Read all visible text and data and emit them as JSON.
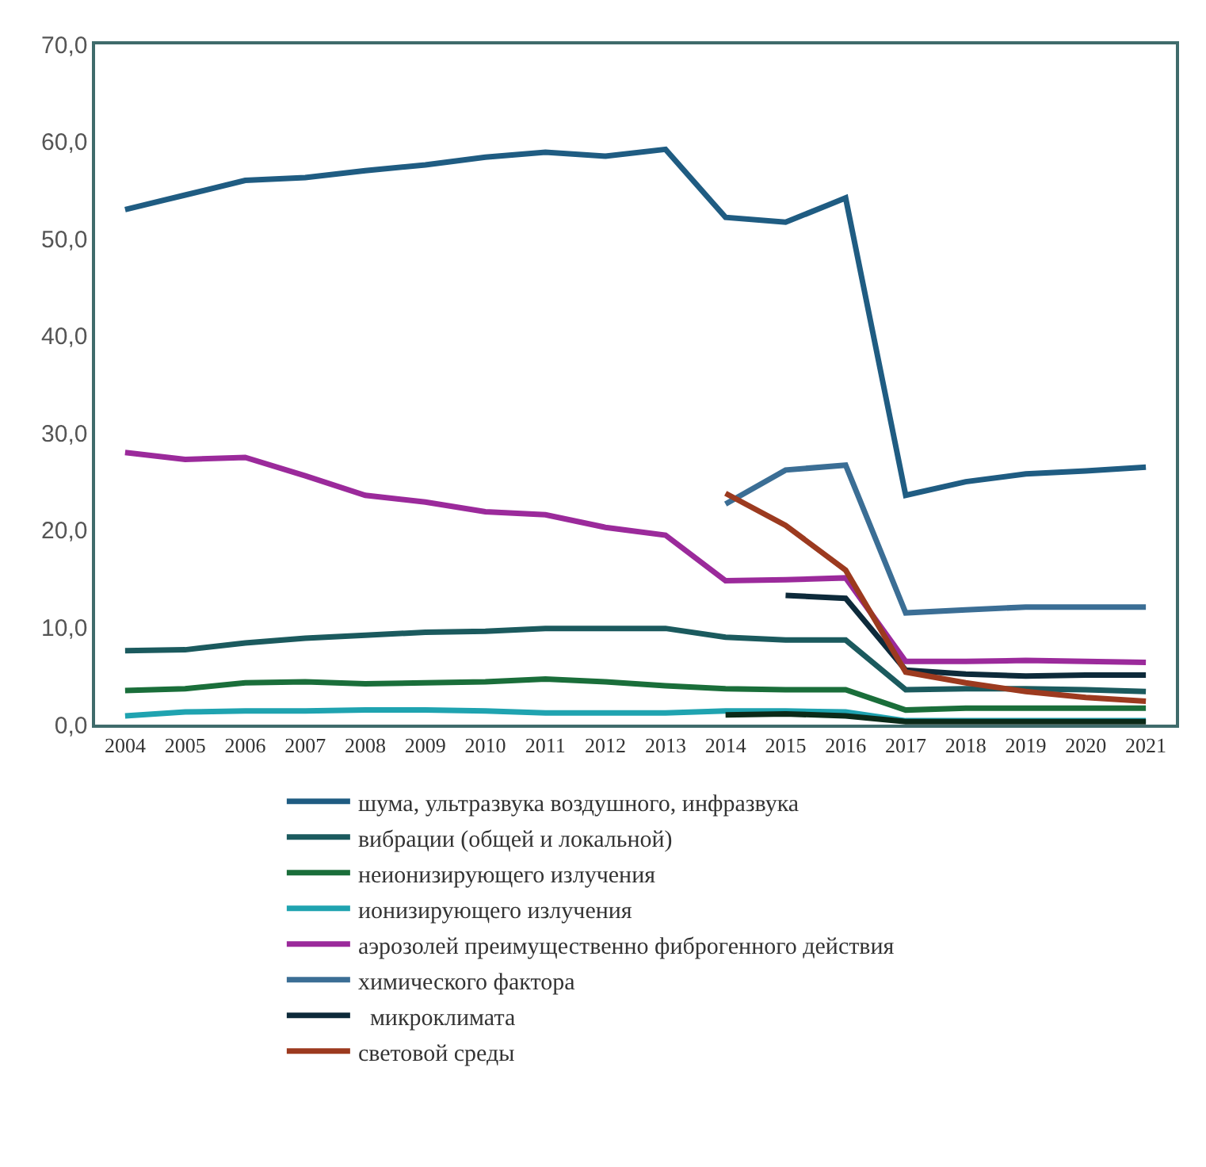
{
  "chart_data": {
    "type": "line",
    "categories": [
      "2004",
      "2005",
      "2006",
      "2007",
      "2008",
      "2009",
      "2010",
      "2011",
      "2012",
      "2013",
      "2014",
      "2015",
      "2016",
      "2017",
      "2018",
      "2019",
      "2020",
      "2021"
    ],
    "ylim": [
      0,
      70
    ],
    "yticks": [
      {
        "value": 0,
        "label": "0,0"
      },
      {
        "value": 10,
        "label": "10,0"
      },
      {
        "value": 20,
        "label": "20,0"
      },
      {
        "value": 30,
        "label": "30,0"
      },
      {
        "value": 40,
        "label": "40,0"
      },
      {
        "value": 50,
        "label": "50,0"
      },
      {
        "value": 60,
        "label": "60,0"
      },
      {
        "value": 70,
        "label": "70,0"
      }
    ],
    "legend": "bottom",
    "marker": "none",
    "line_style": "solid",
    "series": [
      {
        "name": "шума, ультразвука воздушного, инфразвука",
        "color": "#1f5c82",
        "values": [
          53.0,
          54.5,
          56.0,
          56.3,
          57.0,
          57.6,
          58.4,
          58.9,
          58.5,
          59.2,
          52.2,
          51.7,
          54.2,
          23.6,
          25.0,
          25.8,
          26.1,
          26.5
        ]
      },
      {
        "name": "вибрации (общей и локальной)",
        "color": "#1b5a5e",
        "values": [
          7.6,
          7.7,
          8.4,
          8.9,
          9.2,
          9.5,
          9.6,
          9.9,
          9.9,
          9.9,
          9.0,
          8.7,
          8.7,
          3.6,
          3.7,
          3.7,
          3.6,
          3.4
        ]
      },
      {
        "name": "неионизирующего излучения",
        "color": "#1a6e3a",
        "values": [
          3.5,
          3.7,
          4.3,
          4.4,
          4.2,
          4.3,
          4.4,
          4.7,
          4.4,
          4.0,
          3.7,
          3.6,
          3.6,
          1.5,
          1.7,
          1.7,
          1.7,
          1.7
        ]
      },
      {
        "name": "ионизирующего излучения",
        "color": "#1fa3b0",
        "values": [
          0.9,
          1.3,
          1.4,
          1.4,
          1.5,
          1.5,
          1.4,
          1.2,
          1.2,
          1.2,
          1.4,
          1.4,
          1.3,
          0.4,
          0.4,
          0.4,
          0.4,
          0.4
        ]
      },
      {
        "name": "аэрозолей преимущественно фиброгенного действия",
        "color": "#9b2a9b",
        "values": [
          28.0,
          27.3,
          27.5,
          25.6,
          23.6,
          22.9,
          21.9,
          21.6,
          20.3,
          19.5,
          14.8,
          14.9,
          15.1,
          6.5,
          6.5,
          6.6,
          6.5,
          6.4
        ]
      },
      {
        "name": "химического фактора",
        "color": "#3b6e95",
        "values": [
          null,
          null,
          null,
          null,
          null,
          null,
          null,
          null,
          null,
          null,
          22.7,
          26.2,
          26.7,
          11.5,
          11.8,
          12.1,
          12.1,
          12.1
        ]
      },
      {
        "name": "  микроклимата",
        "color": "#0d2a3a",
        "values": [
          null,
          null,
          null,
          null,
          null,
          null,
          null,
          null,
          null,
          null,
          null,
          13.3,
          13.0,
          5.6,
          5.2,
          5.0,
          5.1,
          5.1
        ]
      },
      {
        "name": "световой среды",
        "color": "#9c3a1f",
        "values": [
          null,
          null,
          null,
          null,
          null,
          null,
          null,
          null,
          null,
          null,
          23.8,
          20.5,
          15.9,
          5.4,
          4.3,
          3.4,
          2.8,
          2.4
        ]
      },
      {
        "color": "#0b2a18",
        "values": [
          null,
          null,
          null,
          null,
          null,
          null,
          null,
          null,
          null,
          null,
          1.0,
          1.1,
          0.9,
          0.3,
          0.3,
          0.3,
          0.3,
          0.3
        ]
      }
    ]
  }
}
